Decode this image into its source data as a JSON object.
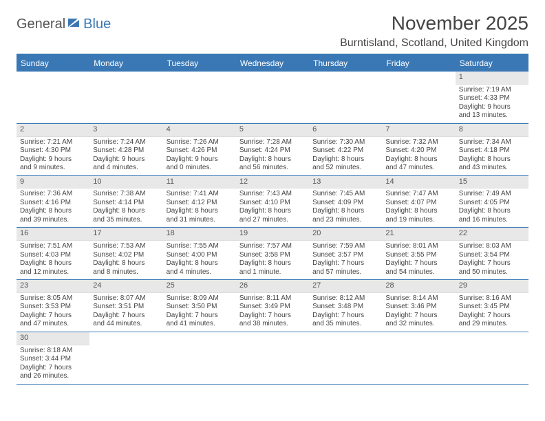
{
  "logo": {
    "part1": "General",
    "part2": "Blue"
  },
  "title": "November 2025",
  "location": "Burntisland, Scotland, United Kingdom",
  "colors": {
    "header_bg": "#3a78b5",
    "header_text": "#ffffff",
    "daynum_bg": "#e8e8e8",
    "border": "#3a78b5",
    "text": "#444444"
  },
  "day_headers": [
    "Sunday",
    "Monday",
    "Tuesday",
    "Wednesday",
    "Thursday",
    "Friday",
    "Saturday"
  ],
  "weeks": [
    [
      null,
      null,
      null,
      null,
      null,
      null,
      {
        "n": "1",
        "sr": "Sunrise: 7:19 AM",
        "ss": "Sunset: 4:33 PM",
        "d1": "Daylight: 9 hours",
        "d2": "and 13 minutes."
      }
    ],
    [
      {
        "n": "2",
        "sr": "Sunrise: 7:21 AM",
        "ss": "Sunset: 4:30 PM",
        "d1": "Daylight: 9 hours",
        "d2": "and 9 minutes."
      },
      {
        "n": "3",
        "sr": "Sunrise: 7:24 AM",
        "ss": "Sunset: 4:28 PM",
        "d1": "Daylight: 9 hours",
        "d2": "and 4 minutes."
      },
      {
        "n": "4",
        "sr": "Sunrise: 7:26 AM",
        "ss": "Sunset: 4:26 PM",
        "d1": "Daylight: 9 hours",
        "d2": "and 0 minutes."
      },
      {
        "n": "5",
        "sr": "Sunrise: 7:28 AM",
        "ss": "Sunset: 4:24 PM",
        "d1": "Daylight: 8 hours",
        "d2": "and 56 minutes."
      },
      {
        "n": "6",
        "sr": "Sunrise: 7:30 AM",
        "ss": "Sunset: 4:22 PM",
        "d1": "Daylight: 8 hours",
        "d2": "and 52 minutes."
      },
      {
        "n": "7",
        "sr": "Sunrise: 7:32 AM",
        "ss": "Sunset: 4:20 PM",
        "d1": "Daylight: 8 hours",
        "d2": "and 47 minutes."
      },
      {
        "n": "8",
        "sr": "Sunrise: 7:34 AM",
        "ss": "Sunset: 4:18 PM",
        "d1": "Daylight: 8 hours",
        "d2": "and 43 minutes."
      }
    ],
    [
      {
        "n": "9",
        "sr": "Sunrise: 7:36 AM",
        "ss": "Sunset: 4:16 PM",
        "d1": "Daylight: 8 hours",
        "d2": "and 39 minutes."
      },
      {
        "n": "10",
        "sr": "Sunrise: 7:38 AM",
        "ss": "Sunset: 4:14 PM",
        "d1": "Daylight: 8 hours",
        "d2": "and 35 minutes."
      },
      {
        "n": "11",
        "sr": "Sunrise: 7:41 AM",
        "ss": "Sunset: 4:12 PM",
        "d1": "Daylight: 8 hours",
        "d2": "and 31 minutes."
      },
      {
        "n": "12",
        "sr": "Sunrise: 7:43 AM",
        "ss": "Sunset: 4:10 PM",
        "d1": "Daylight: 8 hours",
        "d2": "and 27 minutes."
      },
      {
        "n": "13",
        "sr": "Sunrise: 7:45 AM",
        "ss": "Sunset: 4:09 PM",
        "d1": "Daylight: 8 hours",
        "d2": "and 23 minutes."
      },
      {
        "n": "14",
        "sr": "Sunrise: 7:47 AM",
        "ss": "Sunset: 4:07 PM",
        "d1": "Daylight: 8 hours",
        "d2": "and 19 minutes."
      },
      {
        "n": "15",
        "sr": "Sunrise: 7:49 AM",
        "ss": "Sunset: 4:05 PM",
        "d1": "Daylight: 8 hours",
        "d2": "and 16 minutes."
      }
    ],
    [
      {
        "n": "16",
        "sr": "Sunrise: 7:51 AM",
        "ss": "Sunset: 4:03 PM",
        "d1": "Daylight: 8 hours",
        "d2": "and 12 minutes."
      },
      {
        "n": "17",
        "sr": "Sunrise: 7:53 AM",
        "ss": "Sunset: 4:02 PM",
        "d1": "Daylight: 8 hours",
        "d2": "and 8 minutes."
      },
      {
        "n": "18",
        "sr": "Sunrise: 7:55 AM",
        "ss": "Sunset: 4:00 PM",
        "d1": "Daylight: 8 hours",
        "d2": "and 4 minutes."
      },
      {
        "n": "19",
        "sr": "Sunrise: 7:57 AM",
        "ss": "Sunset: 3:58 PM",
        "d1": "Daylight: 8 hours",
        "d2": "and 1 minute."
      },
      {
        "n": "20",
        "sr": "Sunrise: 7:59 AM",
        "ss": "Sunset: 3:57 PM",
        "d1": "Daylight: 7 hours",
        "d2": "and 57 minutes."
      },
      {
        "n": "21",
        "sr": "Sunrise: 8:01 AM",
        "ss": "Sunset: 3:55 PM",
        "d1": "Daylight: 7 hours",
        "d2": "and 54 minutes."
      },
      {
        "n": "22",
        "sr": "Sunrise: 8:03 AM",
        "ss": "Sunset: 3:54 PM",
        "d1": "Daylight: 7 hours",
        "d2": "and 50 minutes."
      }
    ],
    [
      {
        "n": "23",
        "sr": "Sunrise: 8:05 AM",
        "ss": "Sunset: 3:53 PM",
        "d1": "Daylight: 7 hours",
        "d2": "and 47 minutes."
      },
      {
        "n": "24",
        "sr": "Sunrise: 8:07 AM",
        "ss": "Sunset: 3:51 PM",
        "d1": "Daylight: 7 hours",
        "d2": "and 44 minutes."
      },
      {
        "n": "25",
        "sr": "Sunrise: 8:09 AM",
        "ss": "Sunset: 3:50 PM",
        "d1": "Daylight: 7 hours",
        "d2": "and 41 minutes."
      },
      {
        "n": "26",
        "sr": "Sunrise: 8:11 AM",
        "ss": "Sunset: 3:49 PM",
        "d1": "Daylight: 7 hours",
        "d2": "and 38 minutes."
      },
      {
        "n": "27",
        "sr": "Sunrise: 8:12 AM",
        "ss": "Sunset: 3:48 PM",
        "d1": "Daylight: 7 hours",
        "d2": "and 35 minutes."
      },
      {
        "n": "28",
        "sr": "Sunrise: 8:14 AM",
        "ss": "Sunset: 3:46 PM",
        "d1": "Daylight: 7 hours",
        "d2": "and 32 minutes."
      },
      {
        "n": "29",
        "sr": "Sunrise: 8:16 AM",
        "ss": "Sunset: 3:45 PM",
        "d1": "Daylight: 7 hours",
        "d2": "and 29 minutes."
      }
    ],
    [
      {
        "n": "30",
        "sr": "Sunrise: 8:18 AM",
        "ss": "Sunset: 3:44 PM",
        "d1": "Daylight: 7 hours",
        "d2": "and 26 minutes."
      },
      null,
      null,
      null,
      null,
      null,
      null
    ]
  ]
}
